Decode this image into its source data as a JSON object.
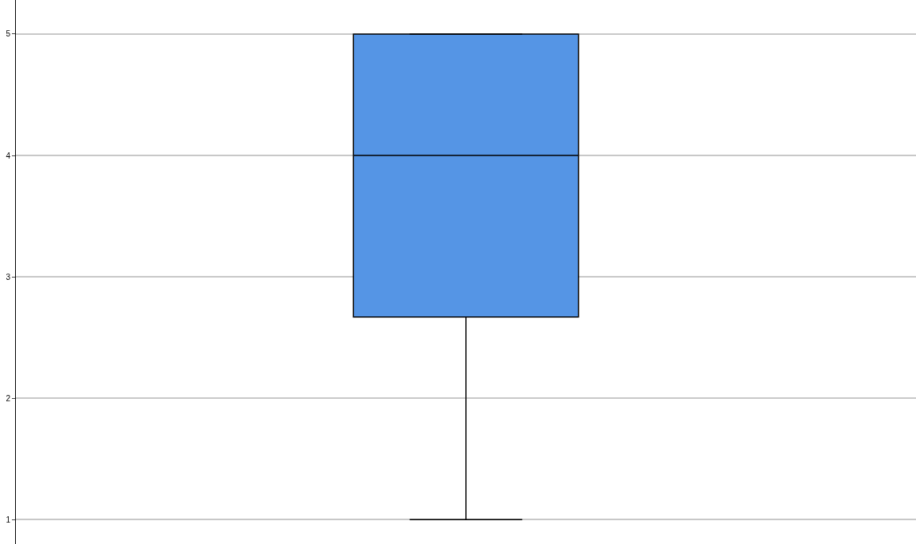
{
  "chart_data": {
    "type": "box",
    "categories": [
      null
    ],
    "boxes": [
      {
        "low": 1,
        "q1": 2.67,
        "median": 4,
        "q3": 5,
        "high": 5
      }
    ],
    "color": "#5595e5",
    "ylim": [
      0.8,
      5.28
    ],
    "yticks": [
      1,
      2,
      3,
      4,
      5
    ],
    "grid": "y",
    "tick_labels": "y"
  }
}
